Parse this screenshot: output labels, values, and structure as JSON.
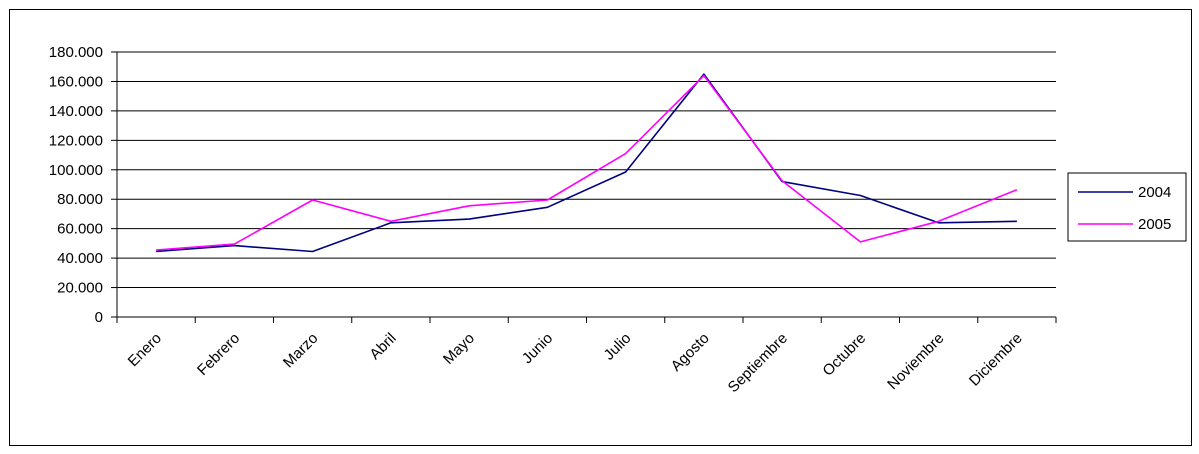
{
  "chart_data": {
    "type": "line",
    "categories": [
      "Enero",
      "Febrero",
      "Marzo",
      "Abril",
      "Mayo",
      "Junio",
      "Julio",
      "Agosto",
      "Septiembre",
      "Octubre",
      "Noviembre",
      "Diciembre"
    ],
    "series": [
      {
        "name": "2004",
        "color": "#000080",
        "values": [
          44500,
          48500,
          44500,
          64000,
          66500,
          74500,
          98500,
          165000,
          92000,
          82500,
          64000,
          65000
        ]
      },
      {
        "name": "2005",
        "color": "#ff00ff",
        "values": [
          45500,
          49500,
          79500,
          65000,
          75500,
          79500,
          111000,
          164000,
          92500,
          51000,
          65000,
          86500
        ]
      }
    ],
    "yticks": [
      "0",
      "20.000",
      "40.000",
      "60.000",
      "80.000",
      "100.000",
      "120.000",
      "140.000",
      "160.000",
      "180.000"
    ],
    "ylim": [
      0,
      180000
    ],
    "ystep": 20000,
    "grid": true,
    "legend_position": "right",
    "title": "",
    "xlabel": "",
    "ylabel": ""
  }
}
